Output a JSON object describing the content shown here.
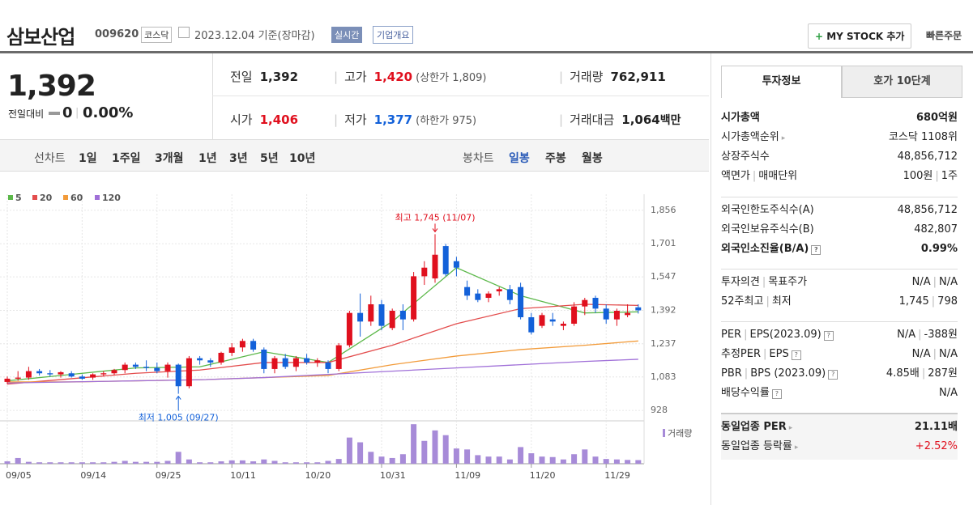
{
  "header": {
    "name": "삼보산업",
    "code": "009620",
    "market": "코스닥",
    "date": "2023.12.04",
    "basis": "기준(장마감)",
    "badges": [
      "실시간",
      "기업개요"
    ],
    "buttons": [
      "MY STOCK 추가",
      "빠른주문"
    ]
  },
  "quote": {
    "price": "1,392",
    "change_label": "전일대비",
    "change": "0",
    "rate": "0.00%"
  },
  "summary": {
    "rows": [
      [
        {
          "label": "전일",
          "value": "1,392"
        },
        {
          "label": "고가",
          "value": "1,420",
          "note": "(상한가 1,809)",
          "color": "#e0101e"
        },
        {
          "label": "거래량",
          "value": "762,911"
        }
      ],
      [
        {
          "label": "시가",
          "value": "1,406",
          "color": "#e0101e"
        },
        {
          "label": "저가",
          "value": "1,377",
          "note": "(하한가 975)",
          "color": "#1361d9"
        },
        {
          "label": "거래대금",
          "value": "1,064",
          "unit": "백만"
        }
      ]
    ]
  },
  "chart_tabs": {
    "line_label": "선차트",
    "line": [
      "1일",
      "1주일",
      "3개월",
      "1년",
      "3년",
      "5년",
      "10년"
    ],
    "candle_label": "봉차트",
    "candle": [
      "일봉",
      "주봉",
      "월봉"
    ],
    "active": "일봉"
  },
  "side": {
    "tabs": [
      "투자정보",
      "호가 10단계"
    ],
    "sections": [
      [
        {
          "label": [
            "시가총액"
          ],
          "value": [
            "680억원"
          ],
          "bold": true
        },
        {
          "label": [
            "시가총액순위"
          ],
          "arrow": true,
          "value": [
            "코스닥 1108위"
          ]
        },
        {
          "label": [
            "상장주식수"
          ],
          "value": [
            "48,856,712"
          ]
        },
        {
          "label": [
            "액면가",
            "매매단위"
          ],
          "value": [
            "100원",
            "1주"
          ]
        }
      ],
      [
        {
          "label": [
            "외국인한도주식수(A)"
          ],
          "value": [
            "48,856,712"
          ]
        },
        {
          "label": [
            "외국인보유주식수(B)"
          ],
          "value": [
            "482,807"
          ]
        },
        {
          "label": [
            "외국인소진율(B/A)"
          ],
          "help": true,
          "value": [
            "0.99%"
          ],
          "bold": true
        }
      ],
      [
        {
          "label": [
            "투자의견",
            "목표주가"
          ],
          "value": [
            "N/A",
            "N/A"
          ]
        },
        {
          "label": [
            "52주최고",
            "최저"
          ],
          "value": [
            "1,745",
            "798"
          ]
        }
      ],
      [
        {
          "label": [
            "PER",
            "EPS(2023.09)"
          ],
          "help": true,
          "value": [
            "N/A",
            "-388원"
          ]
        },
        {
          "label": [
            "추정PER",
            "EPS"
          ],
          "help": true,
          "value": [
            "N/A",
            "N/A"
          ]
        },
        {
          "label": [
            "PBR",
            "BPS (2023.09)"
          ],
          "help": true,
          "value": [
            "4.85배",
            "287원"
          ]
        },
        {
          "label": [
            "배당수익률"
          ],
          "help": true,
          "value": [
            "N/A"
          ]
        }
      ],
      [
        {
          "label": [
            "동일업종 PER"
          ],
          "arrow": true,
          "value": [
            "21.11배"
          ],
          "bold": true
        },
        {
          "label": [
            "동일업종 등락률"
          ],
          "arrow": true,
          "value": [
            "+2.52%"
          ],
          "color": "#e0101e"
        }
      ]
    ]
  },
  "chart_data": {
    "type": "candlestick",
    "categories": [
      "09/05",
      null,
      null,
      null,
      null,
      null,
      null,
      "09/14",
      null,
      null,
      null,
      null,
      null,
      null,
      "09/25",
      null,
      null,
      null,
      null,
      null,
      null,
      "10/11",
      null,
      null,
      null,
      null,
      null,
      null,
      "10/20",
      null,
      null,
      null,
      null,
      null,
      null,
      "10/31",
      null,
      null,
      null,
      null,
      null,
      null,
      "11/09",
      null,
      null,
      null,
      null,
      null,
      null,
      "11/20",
      null,
      null,
      null,
      null,
      null,
      null,
      "11/29",
      null,
      null,
      null
    ],
    "open": [
      1060,
      1075,
      1080,
      1110,
      1100,
      1095,
      1100,
      1085,
      1080,
      1095,
      1100,
      1115,
      1140,
      1130,
      1125,
      1110,
      1140,
      1040,
      1170,
      1160,
      1150,
      1195,
      1220,
      1250,
      1210,
      1120,
      1170,
      1130,
      1170,
      1150,
      1150,
      1120,
      1230,
      1380,
      1340,
      1420,
      1310,
      1390,
      1350,
      1550,
      1540,
      1690,
      1620,
      1500,
      1470,
      1450,
      1480,
      1490,
      1500,
      1360,
      1320,
      1350,
      1320,
      1330,
      1410,
      1450,
      1400,
      1350,
      1370,
      1406
    ],
    "high": [
      1085,
      1110,
      1130,
      1120,
      1115,
      1110,
      1110,
      1095,
      1100,
      1110,
      1120,
      1150,
      1150,
      1160,
      1150,
      1150,
      1145,
      1180,
      1180,
      1170,
      1200,
      1240,
      1260,
      1260,
      1220,
      1180,
      1190,
      1180,
      1190,
      1170,
      1160,
      1240,
      1390,
      1470,
      1460,
      1440,
      1400,
      1420,
      1570,
      1620,
      1745,
      1700,
      1640,
      1530,
      1490,
      1480,
      1500,
      1510,
      1520,
      1380,
      1380,
      1380,
      1340,
      1430,
      1450,
      1460,
      1420,
      1400,
      1420,
      1420
    ],
    "low": [
      1050,
      1065,
      1070,
      1090,
      1085,
      1080,
      1080,
      1070,
      1070,
      1085,
      1090,
      1100,
      1120,
      1110,
      1100,
      1080,
      1005,
      1030,
      1140,
      1130,
      1140,
      1180,
      1200,
      1200,
      1100,
      1100,
      1120,
      1110,
      1140,
      1130,
      1100,
      1110,
      1220,
      1270,
      1320,
      1300,
      1300,
      1300,
      1340,
      1510,
      1520,
      1550,
      1550,
      1440,
      1430,
      1430,
      1460,
      1420,
      1350,
      1280,
      1310,
      1320,
      1300,
      1320,
      1370,
      1380,
      1330,
      1320,
      1360,
      1377
    ],
    "close": [
      1075,
      1080,
      1110,
      1100,
      1095,
      1105,
      1085,
      1075,
      1095,
      1100,
      1115,
      1140,
      1130,
      1125,
      1110,
      1140,
      1040,
      1170,
      1160,
      1150,
      1195,
      1220,
      1250,
      1210,
      1120,
      1170,
      1130,
      1170,
      1150,
      1160,
      1120,
      1230,
      1380,
      1340,
      1420,
      1320,
      1390,
      1350,
      1550,
      1590,
      1650,
      1560,
      1590,
      1460,
      1440,
      1470,
      1490,
      1440,
      1360,
      1290,
      1370,
      1340,
      1330,
      1410,
      1440,
      1400,
      1350,
      1390,
      1380,
      1392
    ],
    "volume": [
      500000,
      1200000,
      400000,
      300000,
      300000,
      300000,
      300000,
      300000,
      300000,
      300000,
      400000,
      600000,
      400000,
      400000,
      400000,
      600000,
      2500000,
      900000,
      300000,
      300000,
      500000,
      700000,
      700000,
      500000,
      900000,
      600000,
      300000,
      300000,
      300000,
      300000,
      600000,
      1000000,
      5500000,
      4500000,
      2500000,
      1500000,
      1200000,
      2000000,
      8300000,
      4800000,
      7000000,
      6000000,
      3200000,
      3000000,
      1800000,
      1500000,
      1500000,
      900000,
      3500000,
      2200000,
      1500000,
      1400000,
      900000,
      2000000,
      3000000,
      1500000,
      1000000,
      900000,
      800000,
      762911
    ],
    "volume_label": "거래량",
    "volume_color": "#a78bd8",
    "volume_lim": [
      0,
      8500000
    ],
    "up_color": "#e0101e",
    "down_color": "#1361d9",
    "series": [
      {
        "name": "5",
        "color": "#5cb84a",
        "x": [
          0,
          6,
          12,
          18,
          24,
          30,
          36,
          42,
          48,
          54,
          59
        ],
        "values": [
          1065,
          1095,
          1125,
          1130,
          1200,
          1150,
          1340,
          1590,
          1460,
          1380,
          1385
        ]
      },
      {
        "name": "20",
        "color": "#e34d4d",
        "x": [
          0,
          6,
          12,
          18,
          24,
          30,
          36,
          42,
          48,
          54,
          59
        ],
        "values": [
          1050,
          1075,
          1100,
          1115,
          1150,
          1150,
          1230,
          1330,
          1400,
          1420,
          1415
        ]
      },
      {
        "name": "60",
        "color": "#f29b3a",
        "x": [
          0,
          6,
          12,
          18,
          24,
          30,
          36,
          42,
          48,
          54,
          59
        ],
        "values": [
          1060,
          1060,
          1065,
          1070,
          1080,
          1090,
          1140,
          1180,
          1210,
          1230,
          1250
        ]
      },
      {
        "name": "120",
        "color": "#a070d8",
        "x": [
          0,
          6,
          12,
          18,
          24,
          30,
          36,
          42,
          48,
          54,
          59
        ],
        "values": [
          1055,
          1060,
          1065,
          1070,
          1080,
          1095,
          1110,
          1125,
          1140,
          1155,
          1165
        ]
      }
    ],
    "ylim": [
      887,
      1893
    ],
    "yticks": [
      {
        "value": 928,
        "label": "928"
      },
      {
        "value": 1083,
        "label": "1,083"
      },
      {
        "value": 1237,
        "label": "1,237"
      },
      {
        "value": 1392,
        "label": "1,392"
      },
      {
        "value": 1547,
        "label": "1,547"
      },
      {
        "value": 1701,
        "label": "1,701"
      },
      {
        "value": 1856,
        "label": "1,856"
      }
    ],
    "annotations": [
      {
        "text": "최고 1,745 (11/07)",
        "index": 40,
        "value": 1745,
        "color": "#e0101e"
      },
      {
        "text": "최저 1,005 (09/27)",
        "index": 16,
        "value": 1005,
        "color": "#1361d9"
      }
    ]
  }
}
